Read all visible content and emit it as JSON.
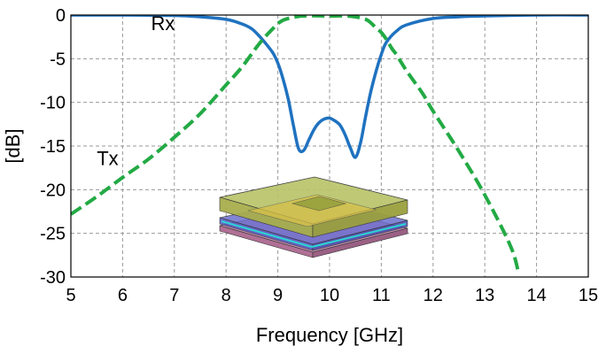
{
  "chart_data": {
    "type": "line",
    "xlabel": "Frequency [GHz]",
    "ylabel": "[dB]",
    "xlim": [
      5,
      15
    ],
    "ylim": [
      -30,
      0
    ],
    "xticks": [
      5,
      6,
      7,
      8,
      9,
      10,
      11,
      12,
      13,
      14,
      15
    ],
    "yticks": [
      0,
      -5,
      -10,
      -15,
      -20,
      -25,
      -30
    ],
    "grid": true,
    "annotations": [
      {
        "id": "rx",
        "text": "Rx",
        "x": 6.55,
        "y": -1.7
      },
      {
        "id": "tx",
        "text": "Tx",
        "x": 5.5,
        "y": -17.2
      }
    ],
    "series": [
      {
        "id": "rx",
        "color": "#1f72c0",
        "dash": "solid",
        "x": [
          5,
          6,
          7,
          7.5,
          8,
          8.3,
          8.5,
          8.7,
          8.9,
          9.0,
          9.1,
          9.2,
          9.3,
          9.4,
          9.5,
          9.6,
          9.7,
          9.8,
          9.9,
          10.0,
          10.1,
          10.2,
          10.3,
          10.4,
          10.5,
          10.6,
          10.7,
          10.8,
          10.9,
          11.0,
          11.1,
          11.3,
          11.5,
          12.0,
          12.5,
          13,
          14,
          15
        ],
        "values": [
          0,
          0,
          -0.05,
          -0.2,
          -0.5,
          -1.0,
          -1.6,
          -2.8,
          -4.3,
          -5.5,
          -7.3,
          -9.6,
          -12.6,
          -15.3,
          -15.5,
          -14.3,
          -13.1,
          -12.3,
          -11.9,
          -11.8,
          -12.1,
          -12.6,
          -13.7,
          -15.2,
          -16.3,
          -14.6,
          -11.5,
          -8.7,
          -6.4,
          -4.5,
          -3.1,
          -1.8,
          -1.1,
          -0.4,
          -0.2,
          -0.1,
          0,
          0
        ]
      },
      {
        "id": "tx",
        "color": "#22aa44",
        "dash": "dashed",
        "x": [
          5,
          5.5,
          6,
          6.5,
          7,
          7.5,
          8,
          8.3,
          8.6,
          8.8,
          9.0,
          9.1,
          9.2,
          9.3,
          9.4,
          9.5,
          9.7,
          10,
          10.3,
          10.5,
          10.7,
          10.8,
          10.9,
          11.0,
          11.1,
          11.2,
          11.3,
          11.5,
          11.8,
          12.0,
          12.5,
          13.0,
          13.5,
          13.65
        ],
        "values": [
          -22.8,
          -20.8,
          -18.6,
          -16.5,
          -14.0,
          -11.3,
          -8.0,
          -6.0,
          -3.6,
          -2.2,
          -1.0,
          -0.6,
          -0.4,
          -0.25,
          -0.15,
          -0.1,
          -0.08,
          -0.1,
          -0.1,
          -0.2,
          -0.5,
          -0.9,
          -1.5,
          -2.0,
          -2.8,
          -3.8,
          -4.6,
          -6.5,
          -9.0,
          -11.0,
          -15.6,
          -20.6,
          -26.5,
          -29.5
        ]
      }
    ]
  }
}
